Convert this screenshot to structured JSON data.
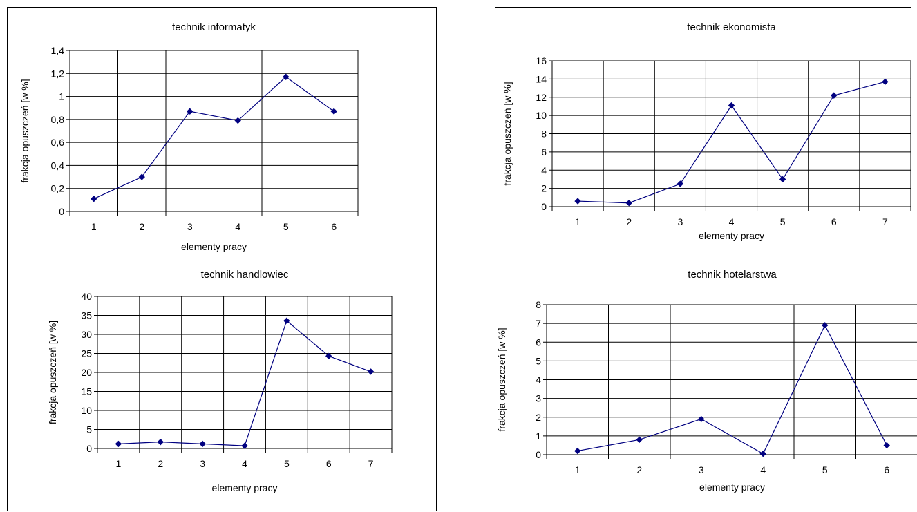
{
  "chart_data": [
    {
      "type": "line",
      "title": "technik informatyk",
      "xlabel": "elementy pracy",
      "ylabel": "frakcja opuszczeń [w %]",
      "categories": [
        "1",
        "2",
        "3",
        "4",
        "5",
        "6"
      ],
      "values": [
        0.11,
        0.3,
        0.87,
        0.79,
        1.17,
        0.87
      ],
      "ylim": [
        0,
        1.4
      ],
      "yticks": [
        "0",
        "0,2",
        "0,4",
        "0,6",
        "0,8",
        "1",
        "1,2",
        "1,4"
      ],
      "grid": true,
      "legend": "none",
      "color": "#000080"
    },
    {
      "type": "line",
      "title": "technik  ekonomista",
      "xlabel": "elementy pracy",
      "ylabel": "frakcja opuszczeń [w %]",
      "categories": [
        "1",
        "2",
        "3",
        "4",
        "5",
        "6",
        "7"
      ],
      "values": [
        0.6,
        0.4,
        2.5,
        11.1,
        3.0,
        12.2,
        13.7
      ],
      "ylim": [
        0,
        16
      ],
      "yticks": [
        "0",
        "2",
        "4",
        "6",
        "8",
        "10",
        "12",
        "14",
        "16"
      ],
      "grid": true,
      "legend": "none",
      "color": "#000080"
    },
    {
      "type": "line",
      "title": "technik handlowiec",
      "xlabel": "elementy pracy",
      "ylabel": "frakcja opuszczeń [w %]",
      "categories": [
        "1",
        "2",
        "3",
        "4",
        "5",
        "6",
        "7"
      ],
      "values": [
        1.2,
        1.7,
        1.2,
        0.7,
        33.6,
        24.3,
        20.2
      ],
      "ylim": [
        0,
        40
      ],
      "yticks": [
        "0",
        "5",
        "10",
        "15",
        "20",
        "25",
        "30",
        "35",
        "40"
      ],
      "grid": true,
      "legend": "none",
      "color": "#000080"
    },
    {
      "type": "line",
      "title": "technik  hotelarstwa",
      "xlabel": "elementy pracy",
      "ylabel": "frakcja opuszczeń [w %]",
      "categories": [
        "1",
        "2",
        "3",
        "4",
        "5",
        "6"
      ],
      "values": [
        0.2,
        0.8,
        1.9,
        0.05,
        6.9,
        0.5
      ],
      "ylim": [
        0,
        8
      ],
      "yticks": [
        "0",
        "1",
        "2",
        "3",
        "4",
        "5",
        "6",
        "7",
        "8"
      ],
      "grid": true,
      "legend": "none",
      "color": "#000080"
    }
  ]
}
